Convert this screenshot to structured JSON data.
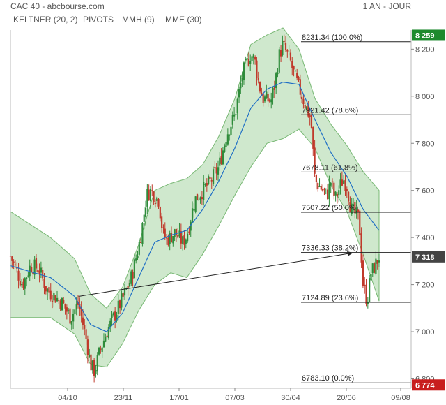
{
  "header": {
    "title": "CAC 40 - abcbourse.com",
    "period": "1 AN - JOUR"
  },
  "legend": [
    {
      "label": "KELTNER (20, 2)",
      "color": "#2e9e3e"
    },
    {
      "label": "PIVOTS",
      "color": "#444444"
    },
    {
      "label": "MMH (9)",
      "color": "#b02a2a"
    },
    {
      "label": "MME (30)",
      "color": "#1f6fc5"
    }
  ],
  "colors": {
    "band_fill": "#cfe8cd",
    "band_line": "#78b874",
    "up_candle": "#2e8b3a",
    "down_candle": "#c0392b",
    "ema_line": "#1f6fc5",
    "high_badge": "#1e8a2e",
    "last_badge": "#444444",
    "low_badge": "#c81e1e"
  },
  "badges": {
    "high": "8 259",
    "last": "7 318",
    "low": "6 774"
  },
  "chart_data": {
    "type": "line",
    "title": "CAC 40",
    "subtype": "candlestick with Keltner channel, EMA(30), Fibonacci retracement",
    "x_tick_labels": [
      "04/10",
      "23/11",
      "17/01",
      "07/03",
      "30/04",
      "20/06",
      "09/08"
    ],
    "y_tick_labels": [
      "6 800",
      "7 000",
      "7 200",
      "7 400",
      "7 600",
      "7 800",
      "8 000",
      "8 200"
    ],
    "y_ticks": [
      6800,
      7000,
      7200,
      7400,
      7600,
      7800,
      8000,
      8200
    ],
    "ylim": [
      6760,
      8290
    ],
    "x_range": [
      0,
      100
    ],
    "grid": false,
    "fibonacci": [
      {
        "value": "8231.34",
        "pct": "(100.0%)",
        "level": 8231.34
      },
      {
        "value": "7921.42",
        "pct": "(78.6%)",
        "level": 7921.42
      },
      {
        "value": "7678.11",
        "pct": "(61.8%)",
        "level": 7678.11
      },
      {
        "value": "7507.22",
        "pct": "(50.0%)",
        "level": 7507.22
      },
      {
        "value": "7336.33",
        "pct": "(38.2%)",
        "level": 7336.33
      },
      {
        "value": "7124.89",
        "pct": "(23.6%)",
        "level": 7124.89
      },
      {
        "value": "6783.10",
        "pct": "(0.0%)",
        "level": 6783.1
      }
    ],
    "trendline": {
      "from": [
        17,
        7150
      ],
      "to": [
        85.5,
        7335
      ]
    },
    "close_path": [
      [
        0,
        7320
      ],
      [
        3,
        7200
      ],
      [
        5,
        7280
      ],
      [
        7,
        7270
      ],
      [
        9,
        7180
      ],
      [
        11,
        7150
      ],
      [
        13,
        7120
      ],
      [
        15,
        7060
      ],
      [
        17,
        7120
      ],
      [
        19,
        6960
      ],
      [
        20,
        6860
      ],
      [
        21,
        6830
      ],
      [
        22,
        6900
      ],
      [
        24,
        7000
      ],
      [
        26,
        7070
      ],
      [
        28,
        7140
      ],
      [
        30,
        7220
      ],
      [
        32,
        7360
      ],
      [
        33,
        7460
      ],
      [
        34,
        7580
      ],
      [
        35,
        7600
      ],
      [
        37,
        7560
      ],
      [
        38,
        7420
      ],
      [
        39,
        7390
      ],
      [
        41,
        7420
      ],
      [
        43,
        7380
      ],
      [
        44,
        7410
      ],
      [
        46,
        7560
      ],
      [
        48,
        7600
      ],
      [
        50,
        7640
      ],
      [
        52,
        7700
      ],
      [
        54,
        7840
      ],
      [
        56,
        7920
      ],
      [
        58,
        8100
      ],
      [
        60,
        8180
      ],
      [
        61,
        8150
      ],
      [
        62,
        8050
      ],
      [
        63,
        7990
      ],
      [
        65,
        7980
      ],
      [
        66,
        8050
      ],
      [
        67,
        8170
      ],
      [
        68,
        8220
      ],
      [
        70,
        8140
      ],
      [
        71,
        8080
      ],
      [
        73,
        7990
      ],
      [
        75,
        7900
      ],
      [
        76,
        7640
      ],
      [
        77,
        7620
      ],
      [
        79,
        7580
      ],
      [
        80,
        7640
      ],
      [
        81,
        7560
      ],
      [
        83,
        7650
      ],
      [
        84,
        7620
      ],
      [
        85,
        7520
      ],
      [
        87,
        7480
      ],
      [
        88,
        7200
      ],
      [
        89,
        7130
      ],
      [
        90,
        7250
      ],
      [
        91,
        7280
      ],
      [
        92,
        7318
      ]
    ],
    "ema_path": [
      [
        0,
        7280
      ],
      [
        10,
        7230
      ],
      [
        16,
        7150
      ],
      [
        20,
        7030
      ],
      [
        24,
        7000
      ],
      [
        28,
        7080
      ],
      [
        32,
        7230
      ],
      [
        36,
        7380
      ],
      [
        40,
        7410
      ],
      [
        44,
        7430
      ],
      [
        48,
        7520
      ],
      [
        52,
        7640
      ],
      [
        56,
        7780
      ],
      [
        60,
        7950
      ],
      [
        64,
        8030
      ],
      [
        68,
        8060
      ],
      [
        72,
        8050
      ],
      [
        76,
        7900
      ],
      [
        80,
        7760
      ],
      [
        84,
        7660
      ],
      [
        88,
        7520
      ],
      [
        92,
        7430
      ]
    ],
    "keltner_upper": [
      [
        0,
        7510
      ],
      [
        10,
        7400
      ],
      [
        16,
        7310
      ],
      [
        20,
        7160
      ],
      [
        24,
        7100
      ],
      [
        28,
        7190
      ],
      [
        32,
        7370
      ],
      [
        36,
        7600
      ],
      [
        40,
        7630
      ],
      [
        44,
        7650
      ],
      [
        48,
        7710
      ],
      [
        52,
        7830
      ],
      [
        56,
        7990
      ],
      [
        60,
        8220
      ],
      [
        64,
        8260
      ],
      [
        68,
        8290
      ],
      [
        72,
        8200
      ],
      [
        76,
        7990
      ],
      [
        80,
        7880
      ],
      [
        84,
        7790
      ],
      [
        88,
        7680
      ],
      [
        92,
        7600
      ]
    ],
    "keltner_lower": [
      [
        0,
        7060
      ],
      [
        10,
        7060
      ],
      [
        16,
        6990
      ],
      [
        20,
        6860
      ],
      [
        24,
        6850
      ],
      [
        28,
        6950
      ],
      [
        32,
        7090
      ],
      [
        36,
        7200
      ],
      [
        40,
        7250
      ],
      [
        44,
        7230
      ],
      [
        48,
        7330
      ],
      [
        52,
        7450
      ],
      [
        56,
        7580
      ],
      [
        60,
        7700
      ],
      [
        64,
        7800
      ],
      [
        68,
        7820
      ],
      [
        72,
        7860
      ],
      [
        76,
        7780
      ],
      [
        80,
        7620
      ],
      [
        84,
        7510
      ],
      [
        88,
        7330
      ],
      [
        92,
        7130
      ]
    ]
  }
}
